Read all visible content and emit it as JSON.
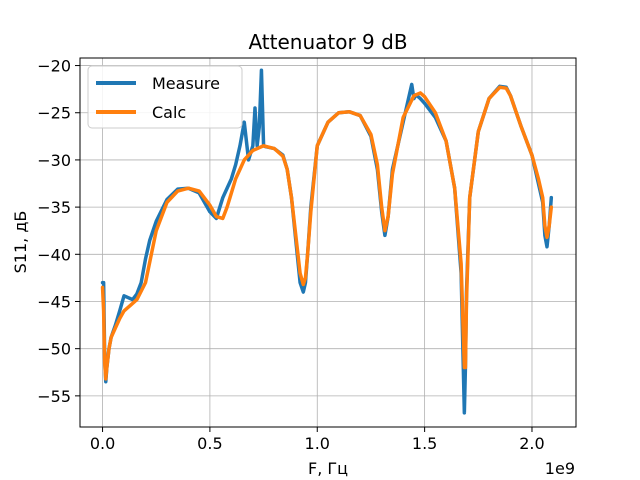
{
  "chart_data": {
    "type": "line",
    "title": "Attenuator 9 dB",
    "xlabel": "F, Гц",
    "ylabel": "S11, дБ",
    "x_offset_label": "1e9",
    "xlim": [
      -0.105,
      2.205
    ],
    "ylim": [
      -58.3,
      -19.2
    ],
    "x_ticks": [
      0.0,
      0.5,
      1.0,
      1.5,
      2.0
    ],
    "x_tick_labels": [
      "0.0",
      "0.5",
      "1.0",
      "1.5",
      "2.0"
    ],
    "y_ticks": [
      -20,
      -25,
      -30,
      -35,
      -40,
      -45,
      -50,
      -55
    ],
    "y_tick_labels": [
      "−20",
      "−25",
      "−30",
      "−35",
      "−40",
      "−45",
      "−50",
      "−55"
    ],
    "grid": true,
    "legend_position": "top-left",
    "colors": {
      "Measure": "#1f77b4",
      "Calc": "#ff7f0e"
    },
    "series": [
      {
        "name": "Measure",
        "x": [
          0.0,
          0.005,
          0.01,
          0.015,
          0.02,
          0.03,
          0.04,
          0.06,
          0.08,
          0.1,
          0.12,
          0.14,
          0.16,
          0.18,
          0.2,
          0.22,
          0.25,
          0.3,
          0.35,
          0.4,
          0.45,
          0.5,
          0.53,
          0.56,
          0.58,
          0.6,
          0.62,
          0.64,
          0.66,
          0.68,
          0.7,
          0.71,
          0.72,
          0.73,
          0.74,
          0.75,
          0.76,
          0.8,
          0.84,
          0.86,
          0.88,
          0.9,
          0.92,
          0.935,
          0.945,
          0.955,
          0.97,
          1.0,
          1.05,
          1.1,
          1.15,
          1.2,
          1.25,
          1.28,
          1.3,
          1.315,
          1.33,
          1.35,
          1.4,
          1.44,
          1.45,
          1.46,
          1.48,
          1.5,
          1.55,
          1.6,
          1.64,
          1.67,
          1.685,
          1.69,
          1.695,
          1.71,
          1.75,
          1.8,
          1.85,
          1.88,
          1.9,
          1.95,
          2.0,
          2.03,
          2.05,
          2.06,
          2.07,
          2.08,
          2.09
        ],
        "y": [
          -43.0,
          -43.0,
          -51.0,
          -53.5,
          -52.0,
          -50.0,
          -48.8,
          -47.5,
          -46.0,
          -44.4,
          -44.6,
          -44.8,
          -44.2,
          -43.0,
          -40.5,
          -38.5,
          -36.5,
          -34.2,
          -33.1,
          -33.0,
          -33.5,
          -35.5,
          -36.2,
          -34.0,
          -33.0,
          -32.0,
          -30.5,
          -28.5,
          -26.0,
          -30.0,
          -28.5,
          -24.5,
          -28.5,
          -26.5,
          -20.5,
          -28.5,
          -28.6,
          -28.8,
          -29.5,
          -31.0,
          -34.0,
          -38.5,
          -43.0,
          -44.0,
          -43.0,
          -40.0,
          -35.0,
          -28.5,
          -26.0,
          -25.0,
          -24.9,
          -25.3,
          -27.5,
          -31.0,
          -35.5,
          -38.0,
          -36.0,
          -31.0,
          -26.0,
          -22.0,
          -23.5,
          -23.1,
          -23.5,
          -24.0,
          -25.5,
          -28.0,
          -33.0,
          -42.0,
          -56.8,
          -52.0,
          -44.0,
          -34.0,
          -27.0,
          -23.5,
          -22.2,
          -22.3,
          -23.2,
          -26.5,
          -29.5,
          -32.5,
          -34.5,
          -38.0,
          -39.2,
          -37.0,
          -34.0
        ]
      },
      {
        "name": "Calc",
        "x": [
          0.0,
          0.005,
          0.01,
          0.015,
          0.02,
          0.03,
          0.04,
          0.06,
          0.08,
          0.1,
          0.13,
          0.16,
          0.2,
          0.25,
          0.3,
          0.35,
          0.4,
          0.45,
          0.5,
          0.53,
          0.56,
          0.58,
          0.6,
          0.62,
          0.64,
          0.66,
          0.7,
          0.75,
          0.8,
          0.84,
          0.86,
          0.88,
          0.9,
          0.92,
          0.935,
          0.945,
          0.955,
          0.97,
          1.0,
          1.05,
          1.1,
          1.15,
          1.2,
          1.25,
          1.28,
          1.3,
          1.315,
          1.33,
          1.35,
          1.4,
          1.45,
          1.48,
          1.5,
          1.55,
          1.6,
          1.64,
          1.67,
          1.685,
          1.69,
          1.695,
          1.71,
          1.75,
          1.8,
          1.85,
          1.88,
          1.9,
          1.95,
          2.0,
          2.03,
          2.05,
          2.06,
          2.07,
          2.08,
          2.09
        ],
        "y": [
          -43.5,
          -46.0,
          -51.5,
          -53.2,
          -52.0,
          -50.0,
          -48.8,
          -47.8,
          -46.8,
          -46.0,
          -45.4,
          -44.8,
          -43.0,
          -37.5,
          -34.5,
          -33.3,
          -33.0,
          -33.3,
          -34.8,
          -36.0,
          -36.2,
          -35.0,
          -33.5,
          -32.0,
          -31.0,
          -30.0,
          -29.0,
          -28.5,
          -28.8,
          -29.6,
          -31.0,
          -34.0,
          -38.0,
          -42.0,
          -43.2,
          -42.5,
          -40.0,
          -35.5,
          -28.5,
          -26.0,
          -25.0,
          -24.9,
          -25.3,
          -27.3,
          -30.5,
          -35.0,
          -37.5,
          -36.0,
          -31.5,
          -25.5,
          -23.2,
          -22.9,
          -23.3,
          -25.0,
          -28.0,
          -33.0,
          -41.0,
          -52.0,
          -52.0,
          -45.0,
          -34.0,
          -27.0,
          -23.5,
          -22.3,
          -22.4,
          -23.2,
          -26.5,
          -29.5,
          -32.0,
          -34.0,
          -37.0,
          -38.2,
          -37.0,
          -35.0
        ]
      }
    ]
  }
}
